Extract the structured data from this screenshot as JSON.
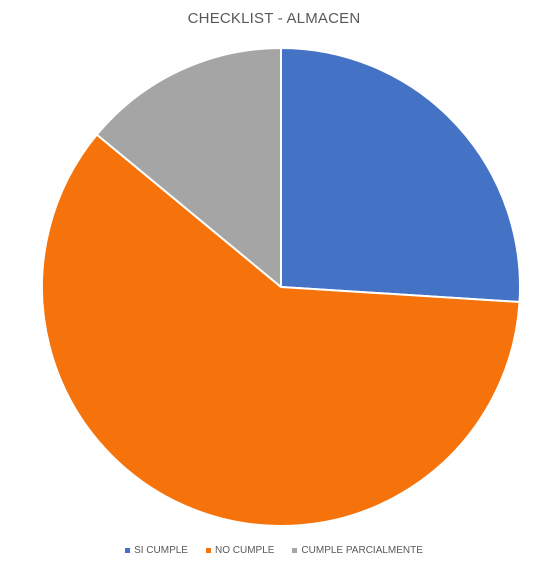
{
  "chart_data": {
    "type": "pie",
    "title": "CHECKLIST - ALMACEN",
    "labels": [
      "SI CUMPLE",
      "NO CUMPLE",
      "CUMPLE PARCIALMENTE"
    ],
    "values": [
      26,
      60,
      14
    ],
    "colors": [
      "#4472C4",
      "#F5730A",
      "#A5A5A5"
    ],
    "start_angle_deg": 0,
    "direction": "clockwise",
    "legend_position": "bottom",
    "slice_border_color": "#FFFFFF"
  }
}
